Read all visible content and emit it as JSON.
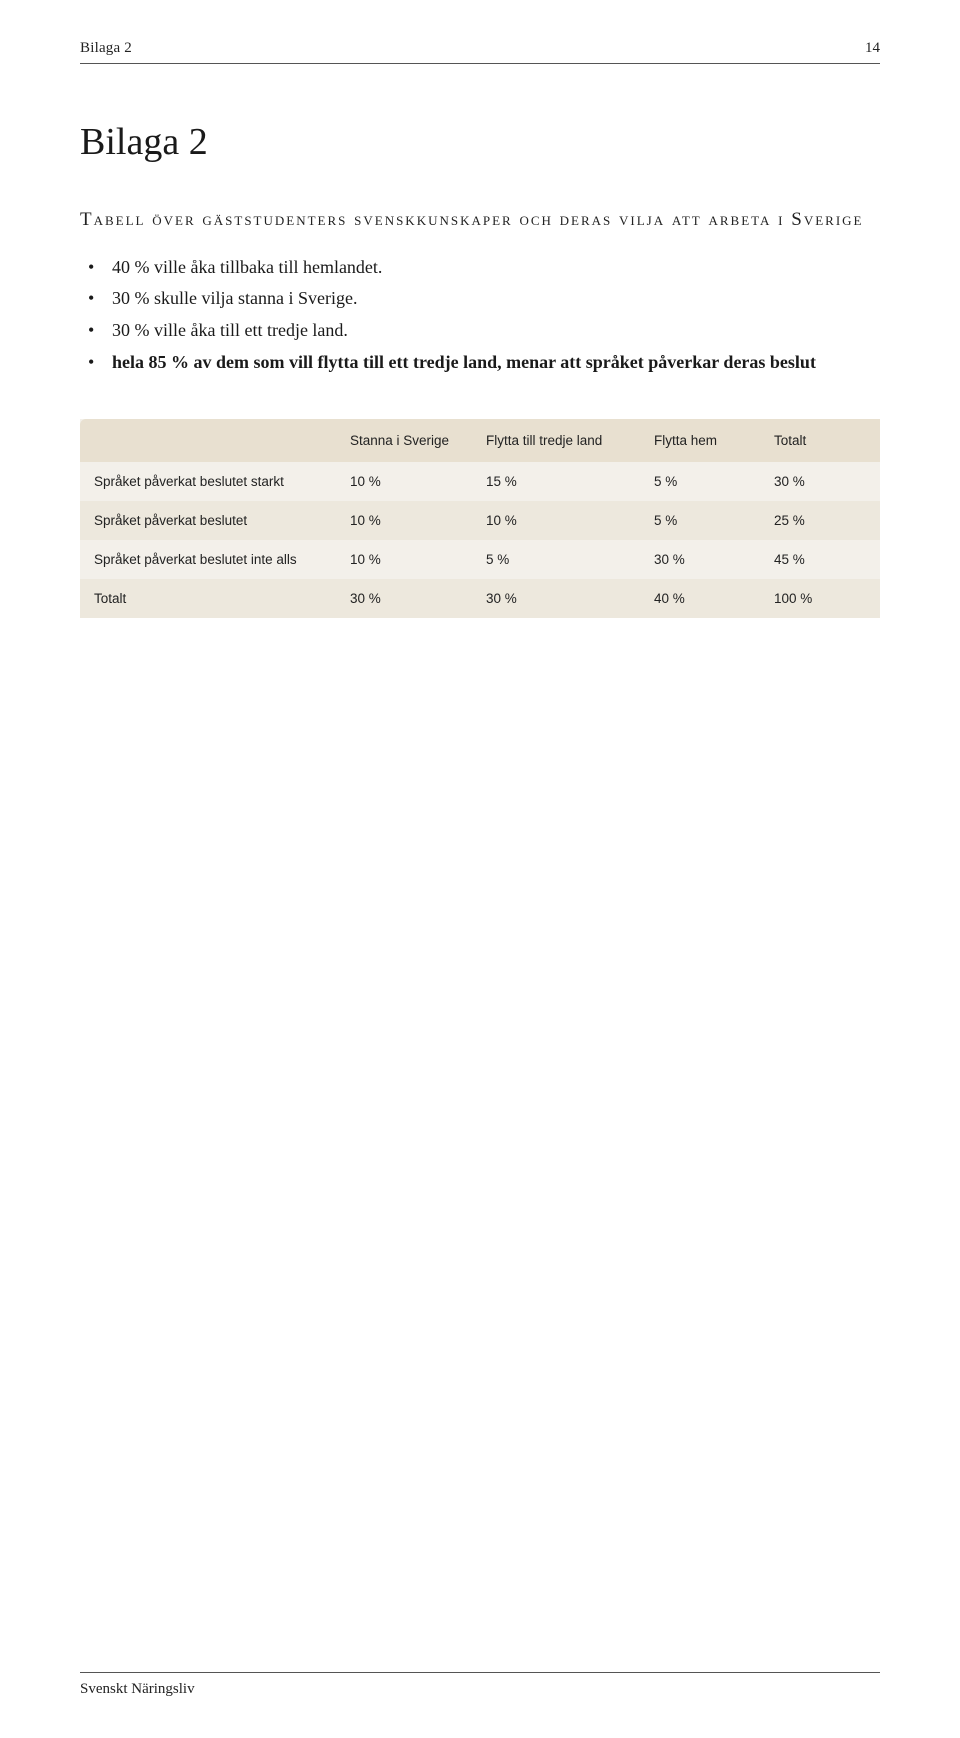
{
  "colors": {
    "page_bg": "#ffffff",
    "text": "#1a1a1a",
    "rule": "#555555",
    "table_header_bg": "#e8e0d0",
    "table_body_bg": "#f3f0ea",
    "table_alt_bg": "#ede8dd"
  },
  "typography": {
    "serif_family": "Georgia",
    "sans_family": "Arial",
    "title_size_pt": 28,
    "section_title_size_pt": 14,
    "body_size_pt": 13,
    "table_size_pt": 10
  },
  "header": {
    "left": "Bilaga 2",
    "page_number": "14"
  },
  "title": "Bilaga 2",
  "section_title": "Tabell över gäststudenters svenskkunskaper och deras vilja att arbeta i Sverige",
  "bullets": [
    {
      "text": "40 % ville åka tillbaka till hemlandet.",
      "bold": false
    },
    {
      "text": "30 % skulle vilja stanna i Sverige.",
      "bold": false
    },
    {
      "text": "30 % ville åka till ett tredje land.",
      "bold": false
    },
    {
      "text": "hela 85 % av dem som vill flytta till ett tredje land, menar att språket påverkar deras beslut",
      "bold": true
    }
  ],
  "table": {
    "type": "table",
    "columns": [
      "",
      "Stanna i Sverige",
      "Flytta till tredje land",
      "Flytta hem",
      "Totalt"
    ],
    "column_widths_pct": [
      32,
      17,
      21,
      15,
      15
    ],
    "rows": [
      {
        "label": "Språket påverkat beslutet starkt",
        "cells": [
          "10 %",
          "15 %",
          "5 %",
          "30 %"
        ],
        "alt": false
      },
      {
        "label": "Språket påverkat beslutet",
        "cells": [
          "10 %",
          "10 %",
          "5 %",
          "25 %"
        ],
        "alt": true
      },
      {
        "label": "Språket påverkat beslutet inte alls",
        "cells": [
          "10 %",
          "5 %",
          "30 %",
          "45 %"
        ],
        "alt": false
      },
      {
        "label": "Totalt",
        "cells": [
          "30 %",
          "30 %",
          "40 %",
          "100 %"
        ],
        "alt": true
      }
    ],
    "header_bg": "#e8e0d0",
    "body_bg": "#f3f0ea",
    "alt_bg": "#ede8dd",
    "font_family": "Arial",
    "font_size_pt": 10,
    "text_color": "#222222"
  },
  "footer": {
    "org": "Svenskt Näringsliv"
  }
}
